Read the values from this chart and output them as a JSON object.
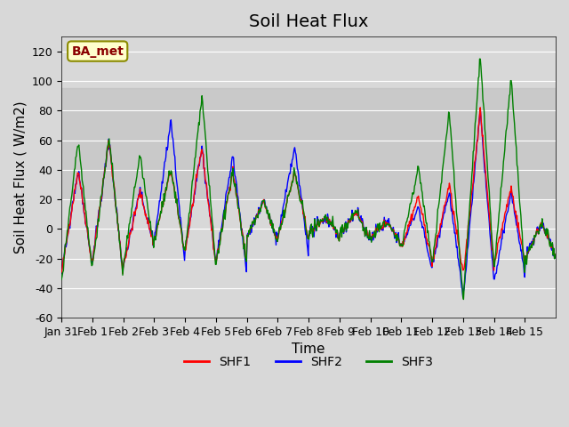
{
  "title": "Soil Heat Flux",
  "xlabel": "Time",
  "ylabel": "Soil Heat Flux ( W/m2)",
  "ylim": [
    -60,
    130
  ],
  "yticks": [
    -60,
    -40,
    -20,
    0,
    20,
    40,
    60,
    80,
    100,
    120
  ],
  "xlabels": [
    "Jan 31",
    "Feb 1",
    "Feb 2",
    "Feb 3",
    "Feb 4",
    "Feb 5",
    "Feb 6",
    "Feb 7",
    "Feb 8",
    "Feb 9",
    "Feb 10",
    "Feb 11",
    "Feb 12",
    "Feb 13",
    "Feb 14",
    "Feb 15"
  ],
  "shaded_band": [
    20,
    95
  ],
  "legend_label": "BA_met",
  "legend_box_color": "#ffffcc",
  "legend_box_border": "#8B8B00",
  "series_colors": [
    "red",
    "blue",
    "green"
  ],
  "series_names": [
    "SHF1",
    "SHF2",
    "SHF3"
  ],
  "line_width": 1.0,
  "title_fontsize": 14,
  "axis_fontsize": 11,
  "tick_fontsize": 9,
  "legend_fontsize": 10
}
